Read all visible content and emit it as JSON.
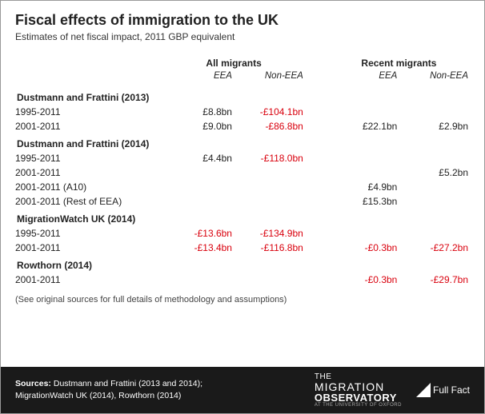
{
  "title": "Fiscal effects of immigration to the UK",
  "subtitle": "Estimates of net fiscal impact, 2011 GBP equivalent",
  "columns": {
    "group_all": "All migrants",
    "group_recent": "Recent migrants",
    "eea": "EEA",
    "non_eea": "Non-EEA"
  },
  "neg_color": "#d9000d",
  "studies": [
    {
      "name": "Dustmann and Frattini (2013)",
      "rows": [
        {
          "period": "1995-2011",
          "all_eea": "£8.8bn",
          "all_non_eea": "-£104.1bn",
          "rec_eea": "",
          "rec_non_eea": ""
        },
        {
          "period": "2001-2011",
          "all_eea": "£9.0bn",
          "all_non_eea": "-£86.8bn",
          "rec_eea": "£22.1bn",
          "rec_non_eea": "£2.9bn"
        }
      ]
    },
    {
      "name": "Dustmann and Frattini (2014)",
      "rows": [
        {
          "period": "1995-2011",
          "all_eea": "£4.4bn",
          "all_non_eea": "-£118.0bn",
          "rec_eea": "",
          "rec_non_eea": ""
        },
        {
          "period": "2001-2011",
          "all_eea": "",
          "all_non_eea": "",
          "rec_eea": "",
          "rec_non_eea": "£5.2bn"
        },
        {
          "period": "2001-2011 (A10)",
          "all_eea": "",
          "all_non_eea": "",
          "rec_eea": "£4.9bn",
          "rec_non_eea": ""
        },
        {
          "period": "2001-2011 (Rest of EEA)",
          "all_eea": "",
          "all_non_eea": "",
          "rec_eea": "£15.3bn",
          "rec_non_eea": ""
        }
      ]
    },
    {
      "name": "MigrationWatch UK (2014)",
      "rows": [
        {
          "period": "1995-2011",
          "all_eea": "-£13.6bn",
          "all_non_eea": "-£134.9bn",
          "rec_eea": "",
          "rec_non_eea": ""
        },
        {
          "period": "2001-2011",
          "all_eea": "-£13.4bn",
          "all_non_eea": "-£116.8bn",
          "rec_eea": "-£0.3bn",
          "rec_non_eea": "-£27.2bn"
        }
      ]
    },
    {
      "name": "Rowthorn (2014)",
      "rows": [
        {
          "period": "2001-2011",
          "all_eea": "",
          "all_non_eea": "",
          "rec_eea": "-£0.3bn",
          "rec_non_eea": "-£29.7bn"
        }
      ]
    }
  ],
  "footnote": "(See original sources for full details of methodology and assumptions)",
  "sources_label": "Sources:",
  "sources_text": "Dustmann and Frattini (2013 and 2014); MigrationWatch UK (2014), Rowthorn (2014)",
  "logo_mig": {
    "l1": "THE",
    "l2": "MIGRATION",
    "l3": "OBSERVATORY",
    "l4": "AT THE UNIVERSITY OF OXFORD"
  },
  "logo_fullfact": "Full Fact"
}
